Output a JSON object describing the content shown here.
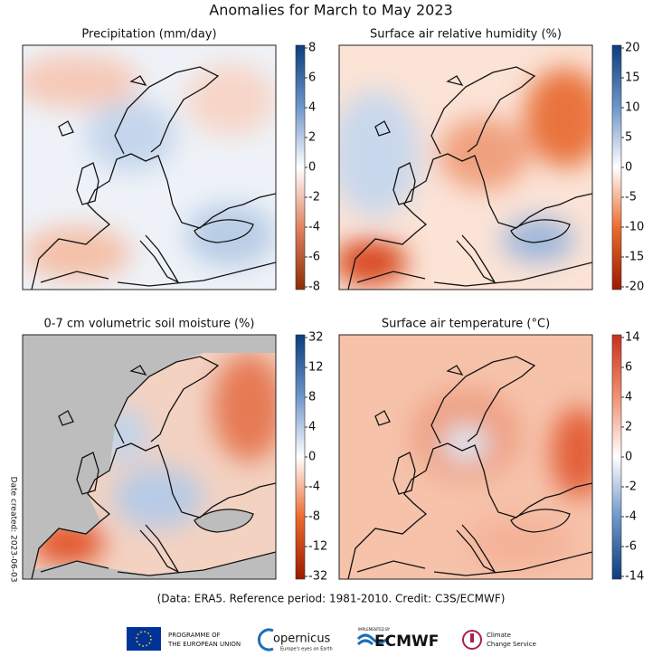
{
  "title": "Anomalies for March to May 2023",
  "panels": [
    {
      "title": "Precipitation (mm/day)",
      "colorbar_ticks": [
        8,
        6,
        4,
        2,
        0,
        -2,
        -4,
        -6,
        -8
      ]
    },
    {
      "title": "Surface air relative humidity (%)",
      "colorbar_ticks": [
        20,
        15,
        10,
        5,
        0,
        -5,
        -10,
        -15,
        -20
      ]
    },
    {
      "title": "0-7 cm volumetric soil moisture (%)",
      "colorbar_ticks": [
        32,
        12,
        8,
        4,
        0,
        -4,
        -8,
        -12,
        -32
      ]
    },
    {
      "title": "Surface air temperature (°C)",
      "colorbar_ticks": [
        14,
        6,
        4,
        2,
        0,
        -2,
        -4,
        -6,
        -14
      ]
    }
  ],
  "date_created": "Date created: 2023-06-03",
  "footer": "(Data: ERA5.  Reference period: 1981-2010.  Credit: C3S/ECMWF)",
  "logos": {
    "eu_line1": "PROGRAMME OF",
    "eu_line2": "THE EUROPEAN UNION",
    "copernicus": "opernicus",
    "copernicus_tagline": "Europe's eyes on Earth",
    "ecmwf_note": "IMPLEMENTED BY",
    "ecmwf": "ECMWF",
    "c3s_line1": "Climate",
    "c3s_line2": "Change Service"
  }
}
